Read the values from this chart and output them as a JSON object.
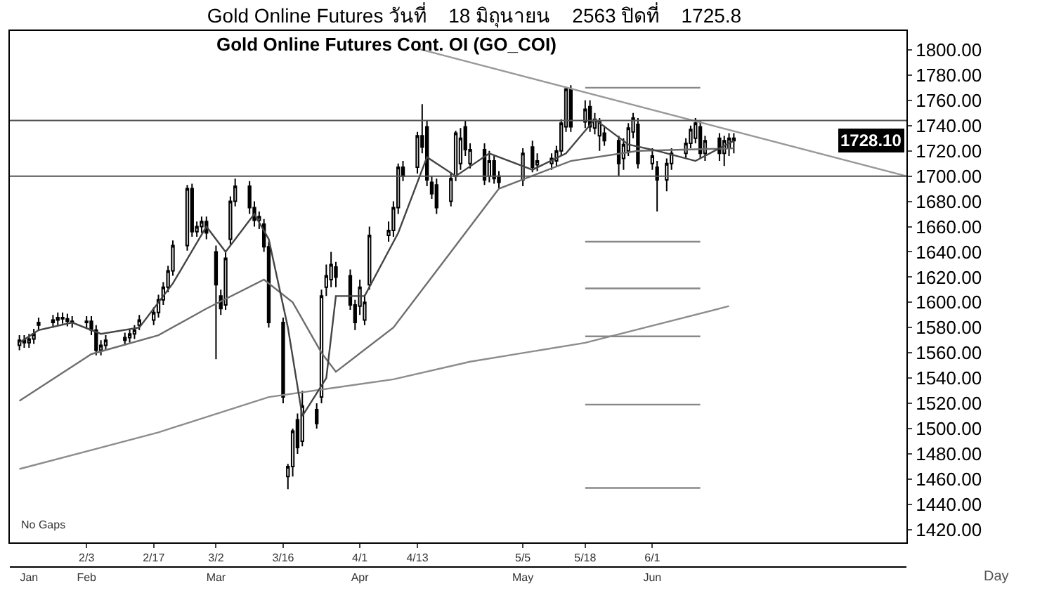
{
  "chart_data": {
    "type": "candlestick",
    "title": "Gold Online Futures วันที่    18 มิถุนายน    2563 ปิดที่    1725.8",
    "subtitle": "Gold Online Futures Cont. OI (GO_COI)",
    "x": [
      "--01-20",
      "--01-21",
      "--01-22",
      "--01-23",
      "--01-24",
      "--01-27",
      "--01-28",
      "--01-29",
      "--01-30",
      "--01-31",
      "--02-03",
      "--02-04",
      "--02-05",
      "--02-06",
      "--02-07",
      "--02-11",
      "--02-12",
      "--02-13",
      "--02-14",
      "--02-17",
      "--02-18",
      "--02-19",
      "--02-20",
      "--02-21",
      "--02-24",
      "--02-25",
      "--02-26",
      "--02-27",
      "--02-28",
      "--03-02",
      "--03-03",
      "--03-04",
      "--03-05",
      "--03-06",
      "--03-09",
      "--03-10",
      "--03-11",
      "--03-12",
      "--03-13",
      "--03-16",
      "--03-17",
      "--03-18",
      "--03-19",
      "--03-20",
      "--03-23",
      "--03-24",
      "--03-25",
      "--03-26",
      "--03-27",
      "--03-30",
      "--03-31",
      "--04-01",
      "--04-02",
      "--04-03",
      "--04-07",
      "--04-08",
      "--04-09",
      "--04-10",
      "--04-13",
      "--04-14",
      "--04-15",
      "--04-16",
      "--04-17",
      "--04-20",
      "--04-21",
      "--04-22",
      "--04-23",
      "--04-24",
      "--04-27",
      "--04-28",
      "--04-29",
      "--04-30",
      "--05-05",
      "--05-07",
      "--05-08",
      "--05-11",
      "--05-12",
      "--05-13",
      "--05-14",
      "--05-15",
      "--05-18",
      "--05-19",
      "--05-20",
      "--05-21",
      "--05-22",
      "--05-25",
      "--05-26",
      "--05-27",
      "--05-28",
      "--05-29",
      "--06-01",
      "--06-02",
      "--06-04",
      "--06-05",
      "--06-08",
      "--06-09",
      "--06-10",
      "--06-11",
      "--06-12",
      "--06-15",
      "--06-16",
      "--06-17",
      "--06-18"
    ],
    "ohlc": [
      [
        1566,
        1574,
        1562,
        1570
      ],
      [
        1570,
        1574,
        1564,
        1568
      ],
      [
        1568,
        1575,
        1564,
        1571
      ],
      [
        1571,
        1579,
        1567,
        1575
      ],
      [
        1582,
        1588,
        1578,
        1584
      ],
      [
        1584,
        1590,
        1580,
        1586
      ],
      [
        1586,
        1592,
        1582,
        1588
      ],
      [
        1588,
        1592,
        1583,
        1587
      ],
      [
        1587,
        1591,
        1581,
        1585
      ],
      [
        1585,
        1589,
        1580,
        1584
      ],
      [
        1584,
        1589,
        1580,
        1585
      ],
      [
        1585,
        1589,
        1574,
        1578
      ],
      [
        1578,
        1582,
        1558,
        1562
      ],
      [
        1562,
        1570,
        1558,
        1566
      ],
      [
        1566,
        1574,
        1562,
        1570
      ],
      [
        1570,
        1576,
        1566,
        1572
      ],
      [
        1572,
        1579,
        1568,
        1575
      ],
      [
        1575,
        1582,
        1571,
        1578
      ],
      [
        1582,
        1590,
        1578,
        1586
      ],
      [
        1586,
        1596,
        1582,
        1592
      ],
      [
        1592,
        1606,
        1588,
        1602
      ],
      [
        1602,
        1616,
        1598,
        1612
      ],
      [
        1612,
        1629,
        1608,
        1625
      ],
      [
        1625,
        1649,
        1621,
        1645
      ],
      [
        1645,
        1693,
        1641,
        1690
      ],
      [
        1690,
        1694,
        1652,
        1656
      ],
      [
        1656,
        1664,
        1652,
        1660
      ],
      [
        1660,
        1668,
        1655,
        1664
      ],
      [
        1664,
        1668,
        1650,
        1655
      ],
      [
        1640,
        1645,
        1555,
        1614
      ],
      [
        1605,
        1610,
        1590,
        1595
      ],
      [
        1598,
        1640,
        1594,
        1635
      ],
      [
        1650,
        1684,
        1646,
        1680
      ],
      [
        1680,
        1698,
        1676,
        1692
      ],
      [
        1692,
        1696,
        1670,
        1675
      ],
      [
        1675,
        1680,
        1660,
        1665
      ],
      [
        1665,
        1672,
        1658,
        1668
      ],
      [
        1662,
        1666,
        1640,
        1644
      ],
      [
        1644,
        1648,
        1580,
        1584
      ],
      [
        1584,
        1588,
        1520,
        1525
      ],
      [
        1462,
        1472,
        1452,
        1470
      ],
      [
        1470,
        1500,
        1462,
        1498
      ],
      [
        1507,
        1512,
        1480,
        1485
      ],
      [
        1490,
        1530,
        1486,
        1518
      ],
      [
        1515,
        1520,
        1500,
        1504
      ],
      [
        1525,
        1610,
        1520,
        1605
      ],
      [
        1612,
        1630,
        1605,
        1621
      ],
      [
        1618,
        1640,
        1612,
        1630
      ],
      [
        1628,
        1632,
        1612,
        1620
      ],
      [
        1621,
        1626,
        1594,
        1598
      ],
      [
        1598,
        1602,
        1578,
        1584
      ],
      [
        1597,
        1618,
        1590,
        1612
      ],
      [
        1586,
        1606,
        1582,
        1600
      ],
      [
        1614,
        1660,
        1610,
        1653
      ],
      [
        1653,
        1664,
        1648,
        1657
      ],
      [
        1657,
        1680,
        1652,
        1675
      ],
      [
        1675,
        1710,
        1670,
        1707
      ],
      [
        1707,
        1712,
        1696,
        1700
      ],
      [
        1707,
        1735,
        1702,
        1732
      ],
      [
        1732,
        1757,
        1718,
        1723
      ],
      [
        1739,
        1744,
        1692,
        1697
      ],
      [
        1695,
        1700,
        1682,
        1686
      ],
      [
        1693,
        1698,
        1670,
        1675
      ],
      [
        1680,
        1702,
        1676,
        1698
      ],
      [
        1700,
        1736,
        1696,
        1734
      ],
      [
        1710,
        1738,
        1705,
        1730
      ],
      [
        1739,
        1744,
        1716,
        1721
      ],
      [
        1710,
        1726,
        1706,
        1721
      ],
      [
        1721,
        1726,
        1693,
        1697
      ],
      [
        1700,
        1720,
        1695,
        1712
      ],
      [
        1712,
        1716,
        1694,
        1698
      ],
      [
        1700,
        1704,
        1690,
        1695
      ],
      [
        1697,
        1722,
        1692,
        1718
      ],
      [
        1723,
        1728,
        1703,
        1707
      ],
      [
        1709,
        1718,
        1704,
        1712
      ],
      [
        1710,
        1718,
        1705,
        1714
      ],
      [
        1712,
        1724,
        1708,
        1720
      ],
      [
        1720,
        1745,
        1716,
        1742
      ],
      [
        1739,
        1771,
        1735,
        1769
      ],
      [
        1769,
        1772,
        1735,
        1739
      ],
      [
        1743,
        1760,
        1738,
        1753
      ],
      [
        1755,
        1760,
        1735,
        1739
      ],
      [
        1738,
        1750,
        1733,
        1745
      ],
      [
        1732,
        1746,
        1720,
        1743
      ],
      [
        1734,
        1740,
        1724,
        1728
      ],
      [
        1728,
        1732,
        1700,
        1710
      ],
      [
        1714,
        1730,
        1705,
        1725
      ],
      [
        1720,
        1742,
        1716,
        1738
      ],
      [
        1735,
        1750,
        1730,
        1746
      ],
      [
        1741,
        1746,
        1706,
        1710
      ],
      [
        1710,
        1722,
        1705,
        1716
      ],
      [
        1707,
        1712,
        1672,
        1697
      ],
      [
        1697,
        1714,
        1688,
        1710
      ],
      [
        1710,
        1722,
        1705,
        1718
      ],
      [
        1718,
        1730,
        1714,
        1726
      ],
      [
        1726,
        1740,
        1722,
        1737
      ],
      [
        1730,
        1746,
        1726,
        1742
      ],
      [
        1739,
        1744,
        1714,
        1718
      ],
      [
        1718,
        1732,
        1712,
        1728
      ],
      [
        1730,
        1734,
        1712,
        1718
      ],
      [
        1718,
        1732,
        1708,
        1728
      ],
      [
        1722,
        1734,
        1716,
        1730
      ],
      [
        1730,
        1734,
        1718,
        1728.1
      ]
    ],
    "color": "#000000",
    "series": [
      {
        "type": "line",
        "color": "#8c8c8c",
        "x": [
          "--01-20",
          "--02-04",
          "--02-18",
          "--03-13",
          "--04-08",
          "--04-24",
          "--05-18",
          "--06-17"
        ],
        "values": [
          1468,
          1483,
          1497,
          1525,
          1539,
          1553,
          1568,
          1597
        ]
      },
      {
        "type": "line",
        "color": "#6e6e6e",
        "x": [
          "--01-20",
          "--02-04",
          "--02-18",
          "--02-28",
          "--03-12",
          "--03-18",
          "--03-24",
          "--03-27",
          "--04-08",
          "--04-20",
          "--04-30",
          "--05-15",
          "--05-29",
          "--06-18"
        ],
        "values": [
          1522,
          1559,
          1574,
          1595,
          1618,
          1600,
          1560,
          1545,
          1580,
          1640,
          1690,
          1712,
          1720,
          1722
        ]
      },
      {
        "type": "line",
        "color": "#444444",
        "x": [
          "--01-20",
          "--01-24",
          "--01-31",
          "--02-06",
          "--02-14",
          "--02-21",
          "--02-28",
          "--03-04",
          "--03-10",
          "--03-13",
          "--03-17",
          "--03-20",
          "--03-25",
          "--03-27",
          "--04-02",
          "--04-09",
          "--04-15",
          "--04-21",
          "--04-28",
          "--05-07",
          "--05-14",
          "--05-20",
          "--05-27",
          "--06-02",
          "--06-10",
          "--06-18"
        ],
        "values": [
          1568,
          1578,
          1584,
          1575,
          1580,
          1615,
          1660,
          1640,
          1670,
          1650,
          1580,
          1510,
          1540,
          1605,
          1605,
          1655,
          1715,
          1700,
          1718,
          1705,
          1718,
          1745,
          1725,
          1720,
          1712,
          1728
        ]
      },
      {
        "type": "line",
        "color": "#999999",
        "x": [
          "--04-13",
          "--07-24"
        ],
        "values": [
          1801,
          1700
        ]
      },
      {
        "type": "line",
        "color": "#888888",
        "x": [
          "--05-18",
          "--06-11"
        ],
        "values": [
          1770,
          1770
        ]
      },
      {
        "type": "line",
        "color": "#888888",
        "x": [
          "--05-18",
          "--06-11"
        ],
        "values": [
          1648,
          1648
        ]
      },
      {
        "type": "line",
        "color": "#888888",
        "x": [
          "--05-18",
          "--06-11"
        ],
        "values": [
          1611,
          1611
        ]
      },
      {
        "type": "line",
        "color": "#888888",
        "x": [
          "--05-18",
          "--06-11"
        ],
        "values": [
          1573,
          1573
        ]
      },
      {
        "type": "line",
        "color": "#888888",
        "x": [
          "--05-18",
          "--06-11"
        ],
        "values": [
          1519,
          1519
        ]
      },
      {
        "type": "line",
        "color": "#888888",
        "x": [
          "--05-18",
          "--06-11"
        ],
        "values": [
          1453,
          1453
        ]
      }
    ],
    "ref_lines": [
      {
        "axis": "y",
        "value": 1744,
        "color": "#555555"
      },
      {
        "axis": "y",
        "value": 1700,
        "color": "#555555"
      }
    ],
    "annotations": [
      "No Gaps",
      "Day",
      "1728.10"
    ],
    "xlim": [
      "--01-18",
      "--07-24"
    ],
    "xticks": [
      {
        "value": "--02-03",
        "label": "2/3"
      },
      {
        "value": "--02-17",
        "label": "2/17"
      },
      {
        "value": "--03-02",
        "label": "3/2"
      },
      {
        "value": "--03-16",
        "label": "3/16"
      },
      {
        "value": "--04-01",
        "label": "4/1"
      },
      {
        "value": "--04-13",
        "label": "4/13"
      },
      {
        "value": "--05-05",
        "label": "5/5"
      },
      {
        "value": "--05-18",
        "label": "5/18"
      },
      {
        "value": "--06-01",
        "label": "6/1"
      }
    ],
    "x2lim": [
      "--01-18",
      "--07-24"
    ],
    "x2ticks": [
      {
        "value": "--01-22",
        "label": "Jan"
      },
      {
        "value": "--02-03",
        "label": "Feb"
      },
      {
        "value": "--03-02",
        "label": "Mar"
      },
      {
        "value": "--04-01",
        "label": "Apr"
      },
      {
        "value": "--05-05",
        "label": "May"
      },
      {
        "value": "--06-01",
        "label": "Jun"
      }
    ],
    "ylim": [
      1410,
      1815
    ],
    "yticks": [
      {
        "value": 1420,
        "label": "1420.00"
      },
      {
        "value": 1440,
        "label": "1440.00"
      },
      {
        "value": 1460,
        "label": "1460.00"
      },
      {
        "value": 1480,
        "label": "1480.00"
      },
      {
        "value": 1500,
        "label": "1500.00"
      },
      {
        "value": 1520,
        "label": "1520.00"
      },
      {
        "value": 1540,
        "label": "1540.00"
      },
      {
        "value": 1560,
        "label": "1560.00"
      },
      {
        "value": 1580,
        "label": "1580.00"
      },
      {
        "value": 1600,
        "label": "1600.00"
      },
      {
        "value": 1620,
        "label": "1620.00"
      },
      {
        "value": 1640,
        "label": "1640.00"
      },
      {
        "value": 1660,
        "label": "1660.00"
      },
      {
        "value": 1680,
        "label": "1680.00"
      },
      {
        "value": 1700,
        "label": "1700.00"
      },
      {
        "value": 1720,
        "label": "1720.00"
      },
      {
        "value": 1740,
        "label": "1740.00"
      },
      {
        "value": 1760,
        "label": "1760.00"
      },
      {
        "value": 1780,
        "label": "1780.00"
      },
      {
        "value": 1800,
        "label": "1800.00"
      }
    ]
  }
}
